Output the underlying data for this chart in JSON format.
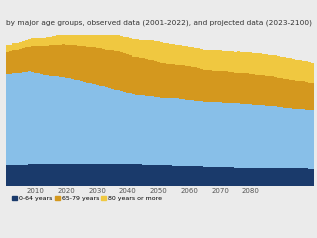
{
  "title": "by major age groups, observed data (2001-2022), and projected data (2023-2100)",
  "years": [
    2001,
    2002,
    2003,
    2004,
    2005,
    2006,
    2007,
    2008,
    2009,
    2010,
    2011,
    2012,
    2013,
    2014,
    2015,
    2016,
    2017,
    2018,
    2019,
    2020,
    2021,
    2022,
    2023,
    2024,
    2025,
    2026,
    2027,
    2028,
    2029,
    2030,
    2031,
    2032,
    2033,
    2034,
    2035,
    2036,
    2037,
    2038,
    2039,
    2040,
    2041,
    2042,
    2043,
    2044,
    2045,
    2046,
    2047,
    2048,
    2049,
    2050,
    2051,
    2052,
    2053,
    2054,
    2055,
    2056,
    2057,
    2058,
    2059,
    2060,
    2061,
    2062,
    2063,
    2064,
    2065,
    2066,
    2067,
    2068,
    2069,
    2070,
    2071,
    2072,
    2073,
    2074,
    2075,
    2076,
    2077,
    2078,
    2079,
    2080,
    2081,
    2082,
    2083,
    2084,
    2085,
    2086,
    2087,
    2088,
    2089,
    2090,
    2091,
    2092,
    2093,
    2094,
    2095,
    2096,
    2097,
    2098,
    2099,
    2100
  ],
  "dark_blue_bottom": [
    55,
    55,
    55,
    55,
    55,
    55,
    55,
    56,
    56,
    56,
    56,
    56,
    56,
    56,
    56,
    56,
    57,
    57,
    57,
    57,
    57,
    57,
    57,
    57,
    57,
    57,
    57,
    57,
    57,
    57,
    57,
    57,
    57,
    57,
    57,
    57,
    57,
    57,
    57,
    57,
    56,
    56,
    56,
    56,
    55,
    55,
    55,
    55,
    54,
    54,
    54,
    53,
    53,
    53,
    52,
    52,
    52,
    51,
    51,
    51,
    50,
    50,
    50,
    50,
    49,
    49,
    49,
    49,
    49,
    48,
    48,
    48,
    48,
    48,
    47,
    47,
    47,
    47,
    47,
    47,
    46,
    46,
    46,
    46,
    46,
    46,
    46,
    46,
    46,
    46,
    45,
    45,
    45,
    45,
    45,
    45,
    45,
    45,
    44,
    44
  ],
  "light_blue_middle": [
    235,
    236,
    237,
    238,
    239,
    240,
    241,
    241,
    240,
    238,
    236,
    234,
    232,
    231,
    230,
    229,
    228,
    226,
    225,
    223,
    222,
    221,
    219,
    217,
    215,
    213,
    211,
    209,
    207,
    205,
    203,
    201,
    199,
    197,
    195,
    193,
    191,
    189,
    187,
    185,
    184,
    182,
    181,
    180,
    180,
    179,
    178,
    177,
    177,
    176,
    175,
    175,
    175,
    175,
    176,
    175,
    174,
    174,
    173,
    172,
    172,
    171,
    170,
    169,
    169,
    168,
    168,
    168,
    168,
    169,
    168,
    168,
    167,
    167,
    167,
    167,
    166,
    166,
    166,
    165,
    165,
    164,
    164,
    163,
    162,
    161,
    161,
    160,
    159,
    158,
    158,
    157,
    156,
    155,
    155,
    154,
    154,
    153,
    153,
    152
  ],
  "gold_65_79": [
    58,
    59,
    60,
    61,
    62,
    63,
    64,
    65,
    67,
    69,
    71,
    73,
    75,
    77,
    79,
    81,
    82,
    84,
    86,
    86,
    87,
    88,
    89,
    90,
    91,
    93,
    94,
    95,
    96,
    97,
    97,
    97,
    98,
    99,
    100,
    101,
    102,
    102,
    101,
    100,
    99,
    98,
    97,
    96,
    96,
    95,
    94,
    94,
    93,
    92,
    91,
    90,
    89,
    88,
    88,
    88,
    88,
    88,
    88,
    88,
    87,
    87,
    86,
    85,
    84,
    83,
    83,
    82,
    82,
    81,
    81,
    81,
    81,
    80,
    80,
    80,
    80,
    80,
    79,
    79,
    79,
    79,
    79,
    78,
    78,
    78,
    77,
    77,
    76,
    76,
    75,
    75,
    74,
    74,
    73,
    73,
    72,
    72,
    71,
    71
  ],
  "lightyellow_80plus": [
    17,
    17,
    18,
    18,
    19,
    19,
    20,
    20,
    21,
    21,
    22,
    22,
    22,
    23,
    23,
    24,
    24,
    24,
    25,
    25,
    26,
    26,
    27,
    28,
    29,
    30,
    31,
    32,
    33,
    34,
    35,
    36,
    37,
    38,
    39,
    40,
    41,
    42,
    43,
    44,
    45,
    46,
    47,
    48,
    49,
    50,
    51,
    52,
    53,
    54,
    54,
    54,
    53,
    52,
    52,
    52,
    52,
    51,
    51,
    51,
    51,
    51,
    51,
    51,
    52,
    52,
    53,
    53,
    54,
    54,
    54,
    54,
    55,
    55,
    55,
    56,
    56,
    56,
    56,
    56,
    56,
    56,
    56,
    56,
    56,
    56,
    56,
    56,
    56,
    56,
    56,
    56,
    56,
    56,
    55,
    55,
    54,
    54,
    54,
    53
  ],
  "color_dark_blue": "#1a3a6b",
  "color_light_blue": "#88bfe8",
  "color_gold": "#d4981e",
  "color_lightyellow": "#f0c840",
  "bg_color": "#ebebeb",
  "legend_labels": [
    "0-64 years",
    "65-79 years",
    "80 years or more"
  ],
  "xticks": [
    2010,
    2020,
    2030,
    2040,
    2050,
    2060,
    2070,
    2080
  ],
  "title_fontsize": 5.3,
  "tick_fontsize": 5,
  "legend_fontsize": 4.5,
  "bar_width": 1.0
}
